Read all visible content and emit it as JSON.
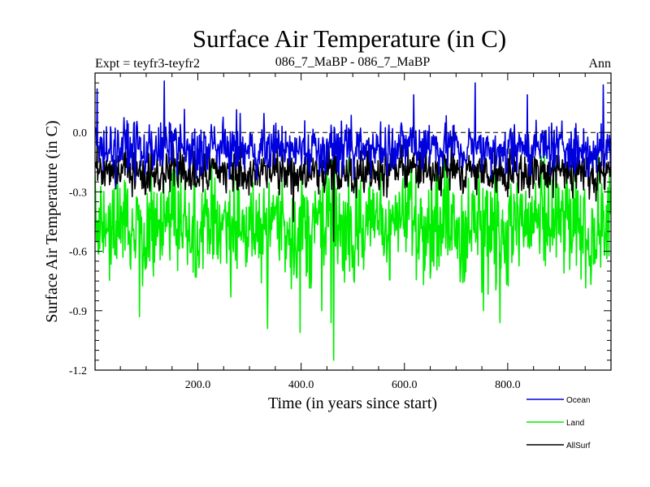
{
  "chart_data": {
    "type": "line",
    "title": "Surface Air Temperature (in C)",
    "subtitle_left": "Expt = teyfr3-teyfr2",
    "subtitle_center": "086_7_MaBP - 086_7_MaBP",
    "subtitle_right": "Ann",
    "xlabel": "Time (in years since start)",
    "ylabel": "Surface Air Temperature (in C)",
    "xlim": [
      1,
      1000
    ],
    "ylim": [
      -1.2,
      0.3
    ],
    "x_ticks": [
      {
        "value": 200,
        "label": "200.0"
      },
      {
        "value": 400,
        "label": "400.0"
      },
      {
        "value": 600,
        "label": "600.0"
      },
      {
        "value": 800,
        "label": "800.0"
      }
    ],
    "y_ticks": [
      {
        "value": 0.0,
        "label": "0.0"
      },
      {
        "value": -0.3,
        "label": "-0.3"
      },
      {
        "value": -0.6,
        "label": "-0.6"
      },
      {
        "value": -0.9,
        "label": "-0.9"
      },
      {
        "value": -1.2,
        "label": "-1.2"
      }
    ],
    "reference_line": 0.0,
    "series": [
      {
        "name": "Land",
        "color": "#00ee00",
        "mean": -0.47,
        "amplitude": 0.2,
        "min": -1.15,
        "max": -0.12,
        "notable": [
          {
            "x": 463,
            "y": -1.15
          },
          {
            "x": 458,
            "y": -0.96
          },
          {
            "x": 398,
            "y": -1.01
          },
          {
            "x": 335,
            "y": -0.99
          },
          {
            "x": 87,
            "y": -0.93
          },
          {
            "x": 785,
            "y": -0.96
          },
          {
            "x": 753,
            "y": -0.9
          }
        ]
      },
      {
        "name": "AllSurf",
        "color": "#000000",
        "mean": -0.2,
        "amplitude": 0.08,
        "min": -0.55,
        "max": 0.08,
        "notable": [
          {
            "x": 385,
            "y": -0.45
          },
          {
            "x": 463,
            "y": -0.55
          }
        ]
      },
      {
        "name": "Ocean",
        "color": "#0000dd",
        "mean": -0.08,
        "amplitude": 0.09,
        "min": -0.45,
        "max": 0.26,
        "notable": [
          {
            "x": 5,
            "y": 0.22
          },
          {
            "x": 135,
            "y": 0.26
          },
          {
            "x": 618,
            "y": 0.19
          },
          {
            "x": 737,
            "y": 0.25
          },
          {
            "x": 838,
            "y": 0.19
          },
          {
            "x": 985,
            "y": 0.24
          }
        ]
      }
    ],
    "legend": {
      "placement": "bottom-right",
      "entries": [
        {
          "label": "Ocean",
          "color": "#0000dd"
        },
        {
          "label": "Land",
          "color": "#00ee00"
        },
        {
          "label": "AllSurf",
          "color": "#000000"
        }
      ]
    }
  }
}
